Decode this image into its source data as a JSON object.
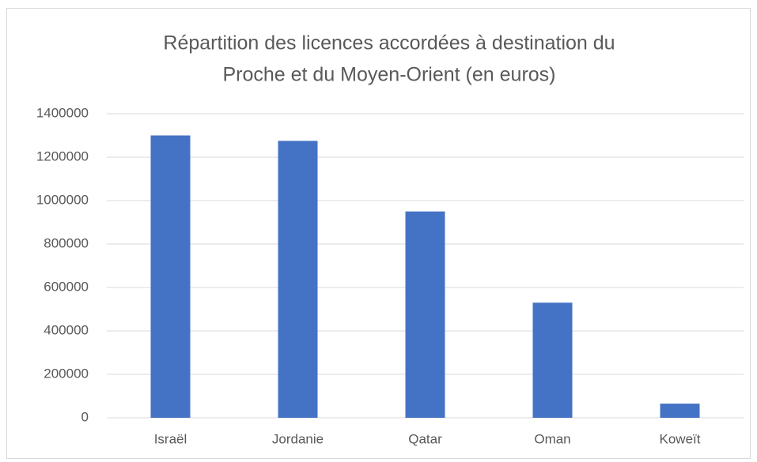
{
  "chart_data": {
    "type": "bar",
    "title": [
      "Répartition des licences accordées à destination du",
      "Proche et du Moyen-Orient (en euros)"
    ],
    "categories": [
      "Israël",
      "Jordanie",
      "Qatar",
      "Oman",
      "Koweït"
    ],
    "values": [
      1300000,
      1275000,
      950000,
      530000,
      65000
    ],
    "color": "#4472c4",
    "ylim": [
      0,
      1400000
    ],
    "yticks": [
      0,
      200000,
      400000,
      600000,
      800000,
      1000000,
      1200000,
      1400000
    ],
    "grid": true
  }
}
